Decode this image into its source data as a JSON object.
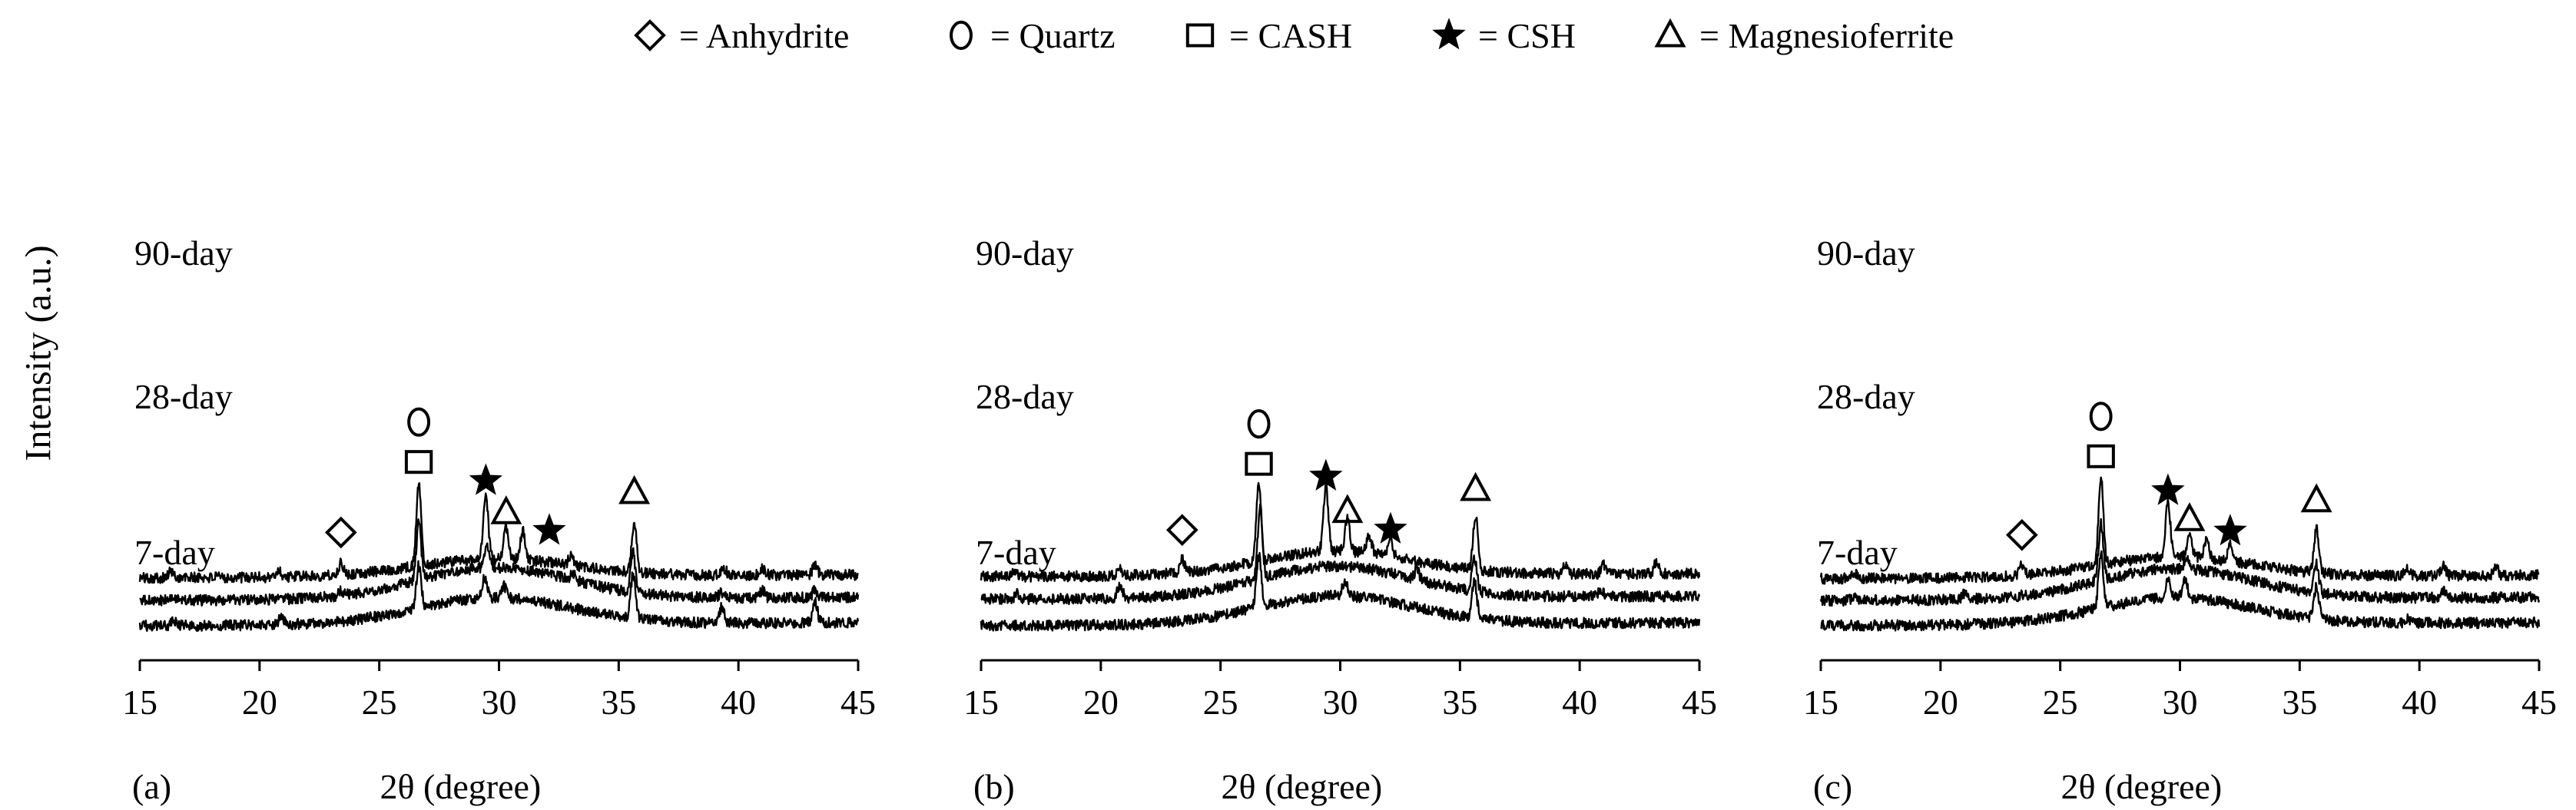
{
  "legend": [
    {
      "symbol": "diamond",
      "label": "= Anhydrite"
    },
    {
      "symbol": "circle",
      "label": "= Quartz"
    },
    {
      "symbol": "square",
      "label": "= CASH"
    },
    {
      "symbol": "star",
      "label": "= CSH"
    },
    {
      "symbol": "triangle",
      "label": "= Magnesioferrite"
    }
  ],
  "ylabel": "Intensity (a.u.)",
  "chart_data": [
    {
      "type": "line",
      "panel_label": "(a)",
      "xlabel": "2θ (degree)",
      "xlim": [
        15,
        45
      ],
      "xticks": [
        15,
        20,
        25,
        30,
        35,
        40,
        45
      ],
      "series": [
        {
          "name": "90-day",
          "baseline": 0.76,
          "hump": 0.28,
          "peaks": [
            [
              16.3,
              0.1
            ],
            [
              20.8,
              0.1
            ],
            [
              23.4,
              0.18
            ],
            [
              26.65,
              1.3
            ],
            [
              29.45,
              1.0
            ],
            [
              30.3,
              0.5
            ],
            [
              31.0,
              0.45
            ],
            [
              33.0,
              0.15
            ],
            [
              35.65,
              0.82
            ],
            [
              39.4,
              0.1
            ],
            [
              41.0,
              0.12
            ],
            [
              43.2,
              0.15
            ]
          ]
        },
        {
          "name": "28-day",
          "baseline": 0.4,
          "hump": 0.5,
          "peaks": [
            [
              16.4,
              0.08
            ],
            [
              23.4,
              0.08
            ],
            [
              26.65,
              0.9
            ],
            [
              29.5,
              0.38
            ],
            [
              33.1,
              0.12
            ],
            [
              35.6,
              0.62
            ],
            [
              39.3,
              0.08
            ],
            [
              41.0,
              0.12
            ],
            [
              43.2,
              0.12
            ]
          ]
        },
        {
          "name": "7-day",
          "baseline": 0.0,
          "hump": 0.42,
          "peaks": [
            [
              16.4,
              0.08
            ],
            [
              20.9,
              0.1
            ],
            [
              26.65,
              0.68
            ],
            [
              29.4,
              0.32
            ],
            [
              30.2,
              0.2
            ],
            [
              35.6,
              0.7
            ],
            [
              39.3,
              0.25
            ],
            [
              43.2,
              0.35
            ]
          ]
        }
      ],
      "annotations": [
        {
          "symbol": "diamond",
          "x": 23.4
        },
        {
          "symbol": "square",
          "x": 26.65
        },
        {
          "symbol": "circle",
          "x": 26.65
        },
        {
          "symbol": "star",
          "x": 29.45
        },
        {
          "symbol": "triangle",
          "x": 30.3
        },
        {
          "symbol": "star",
          "x": 32.1
        },
        {
          "symbol": "triangle",
          "x": 35.65
        }
      ]
    },
    {
      "type": "line",
      "panel_label": "(b)",
      "xlabel": "2θ (degree)",
      "xlim": [
        15,
        45
      ],
      "xticks": [
        15,
        20,
        25,
        30,
        35,
        40,
        45
      ],
      "series": [
        {
          "name": "90-day",
          "baseline": 0.78,
          "hump": 0.38,
          "peaks": [
            [
              16.4,
              0.1
            ],
            [
              20.8,
              0.12
            ],
            [
              23.4,
              0.2
            ],
            [
              26.6,
              1.25
            ],
            [
              29.4,
              1.05
            ],
            [
              30.3,
              0.5
            ],
            [
              31.2,
              0.3
            ],
            [
              32.1,
              0.25
            ],
            [
              35.65,
              0.85
            ],
            [
              39.4,
              0.12
            ],
            [
              41.0,
              0.15
            ],
            [
              43.2,
              0.18
            ]
          ]
        },
        {
          "name": "28-day",
          "baseline": 0.42,
          "hump": 0.5,
          "peaks": [
            [
              16.5,
              0.08
            ],
            [
              20.8,
              0.22
            ],
            [
              26.65,
              1.1
            ],
            [
              33.2,
              0.15
            ],
            [
              35.6,
              0.55
            ],
            [
              40.9,
              0.1
            ]
          ]
        },
        {
          "name": "7-day",
          "baseline": 0.0,
          "hump": 0.45,
          "peaks": [
            [
              26.6,
              0.82
            ],
            [
              30.2,
              0.25
            ],
            [
              35.6,
              0.6
            ]
          ]
        }
      ],
      "annotations": [
        {
          "symbol": "diamond",
          "x": 23.4
        },
        {
          "symbol": "square",
          "x": 26.6
        },
        {
          "symbol": "circle",
          "x": 26.6
        },
        {
          "symbol": "star",
          "x": 29.4
        },
        {
          "symbol": "triangle",
          "x": 30.3
        },
        {
          "symbol": "star",
          "x": 32.1
        },
        {
          "symbol": "triangle",
          "x": 35.65
        }
      ]
    },
    {
      "type": "line",
      "panel_label": "(c)",
      "xlabel": "2θ (degree)",
      "xlim": [
        15,
        45
      ],
      "xticks": [
        15,
        20,
        25,
        30,
        35,
        40,
        45
      ],
      "series": [
        {
          "name": "90-day",
          "baseline": 0.75,
          "hump": 0.32,
          "peaks": [
            [
              16.4,
              0.1
            ],
            [
              23.4,
              0.15
            ],
            [
              26.7,
              1.4
            ],
            [
              29.5,
              0.85
            ],
            [
              30.4,
              0.4
            ],
            [
              31.1,
              0.3
            ],
            [
              32.1,
              0.25
            ],
            [
              35.7,
              0.7
            ],
            [
              39.5,
              0.12
            ],
            [
              41.0,
              0.15
            ],
            [
              43.2,
              0.15
            ]
          ]
        },
        {
          "name": "28-day",
          "baseline": 0.4,
          "hump": 0.48,
          "peaks": [
            [
              16.4,
              0.08
            ],
            [
              21.0,
              0.1
            ],
            [
              26.7,
              0.9
            ],
            [
              30.3,
              0.2
            ],
            [
              35.7,
              0.45
            ],
            [
              41.0,
              0.1
            ]
          ]
        },
        {
          "name": "7-day",
          "baseline": 0.0,
          "hump": 0.42,
          "peaks": [
            [
              26.7,
              0.85
            ],
            [
              29.5,
              0.3
            ],
            [
              30.2,
              0.3
            ],
            [
              35.7,
              0.5
            ],
            [
              39.5,
              0.08
            ]
          ]
        }
      ],
      "annotations": [
        {
          "symbol": "diamond",
          "x": 23.4
        },
        {
          "symbol": "square",
          "x": 26.7
        },
        {
          "symbol": "circle",
          "x": 26.7
        },
        {
          "symbol": "star",
          "x": 29.5
        },
        {
          "symbol": "triangle",
          "x": 30.4
        },
        {
          "symbol": "star",
          "x": 32.1
        },
        {
          "symbol": "triangle",
          "x": 35.7
        }
      ]
    }
  ]
}
